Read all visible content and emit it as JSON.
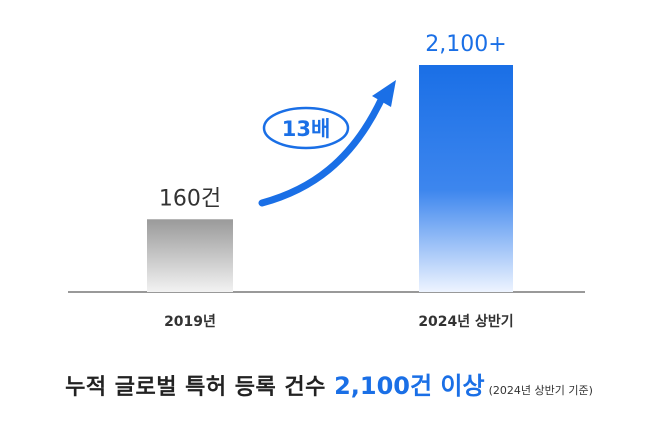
{
  "chart_data": {
    "type": "bar",
    "categories": [
      "2019년",
      "2024년 상반기"
    ],
    "values": [
      160,
      2100
    ],
    "value_labels": [
      "160건",
      "2,100+"
    ],
    "growth_label": "13배",
    "colors": {
      "bar_2019": "#9a9a9a",
      "bar_2024": "#1a6fe6",
      "accent": "#1a6fe6",
      "text": "#333333"
    },
    "grid": false,
    "legend": "none"
  },
  "caption": {
    "main": "누적 글로벌 특허 등록 건수 ",
    "highlight": "2,100건 이상",
    "note": "(2024년 상반기 기준)"
  }
}
